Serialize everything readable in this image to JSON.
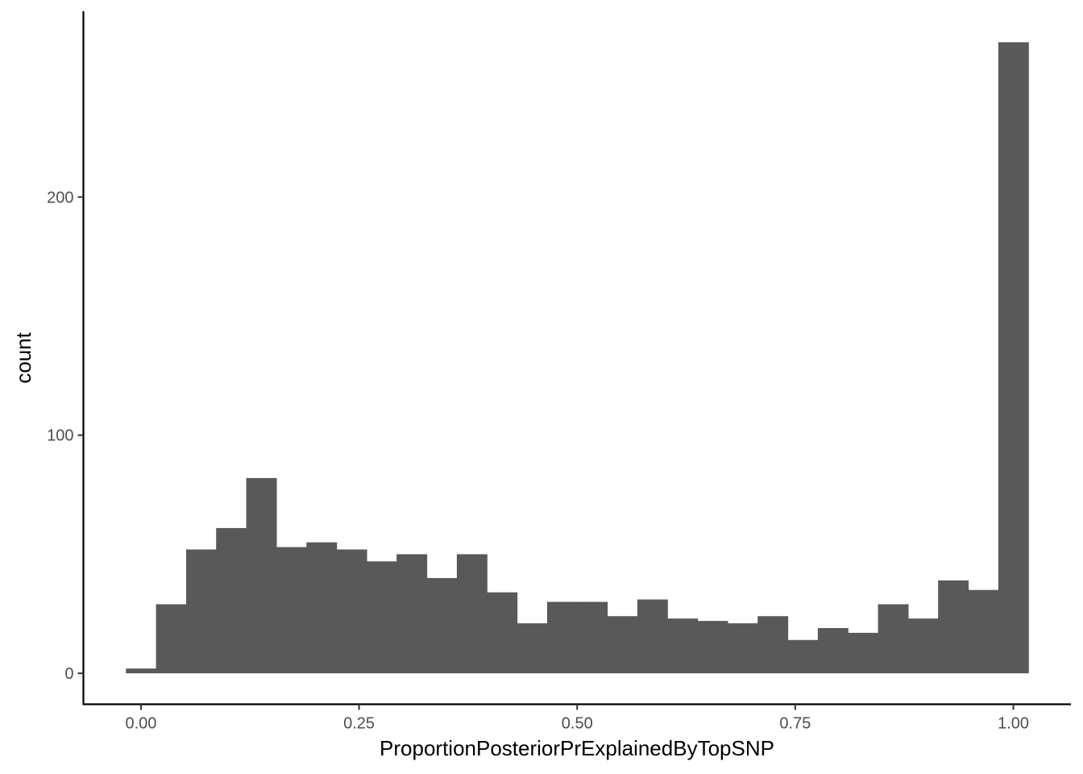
{
  "chart_data": {
    "type": "bar",
    "subtype": "histogram",
    "xlabel": "ProportionPosteriorPrExplainedByTopSNP",
    "ylabel": "count",
    "xlim": [
      -0.066,
      1.066
    ],
    "ylim": [
      -13,
      278
    ],
    "x_ticks": [
      0.0,
      0.25,
      0.5,
      0.75,
      1.0
    ],
    "x_tick_labels": [
      "0.00",
      "0.25",
      "0.50",
      "0.75",
      "1.00"
    ],
    "y_ticks": [
      0,
      100,
      200
    ],
    "y_tick_labels": [
      "0",
      "100",
      "200"
    ],
    "bin_width": 0.0345,
    "bin_centers": [
      0.0,
      0.0345,
      0.069,
      0.1034,
      0.1379,
      0.1724,
      0.2069,
      0.2414,
      0.2759,
      0.3103,
      0.3448,
      0.3793,
      0.4138,
      0.4483,
      0.4828,
      0.5172,
      0.5517,
      0.5862,
      0.6207,
      0.6552,
      0.6897,
      0.7241,
      0.7586,
      0.7931,
      0.8276,
      0.8621,
      0.8966,
      0.931,
      0.9655,
      1.0
    ],
    "values": [
      2,
      29,
      52,
      61,
      82,
      53,
      55,
      52,
      47,
      50,
      40,
      50,
      34,
      21,
      30,
      30,
      24,
      31,
      23,
      22,
      21,
      24,
      14,
      19,
      17,
      29,
      23,
      39,
      35,
      265
    ],
    "bar_color": "#595959",
    "grid": false,
    "legend": "none"
  }
}
